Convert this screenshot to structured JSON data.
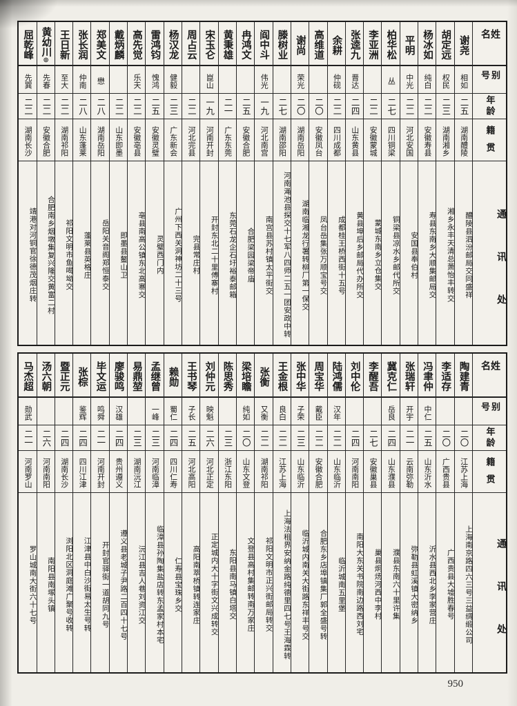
{
  "page_number": "950",
  "column_headers": {
    "name": "姓名",
    "alias": "别号",
    "age": "年龄",
    "native_place": "籍贯",
    "address": "通讯处"
  },
  "tables": [
    {
      "people": [
        {
          "name": "谢尧",
          "alias": "相如",
          "age": "二五",
          "native": "湖南醴陵",
          "address": "醴陵县泗汾邮局交同盛祥"
        },
        {
          "name": "胡定远",
          "alias": "权民",
          "age": "二三",
          "native": "湖南湘乡",
          "address": "湘乡永丰天清总萧怡丰转交"
        },
        {
          "name": "杨冰如",
          "alias": "纯白",
          "age": "二二",
          "native": "安徽寿县",
          "address": "寿县东南乡大顺集邮局交"
        },
        {
          "name": "平明",
          "alias": "中光",
          "age": "二二",
          "native": "河北安国",
          "address": "安国县奉伯村"
        },
        {
          "name": "柏华松",
          "alias": "丛",
          "age": "二七",
          "native": "四川铜梁",
          "address": "铜梁县凉水乡邮代所交"
        },
        {
          "name": "李亚洲",
          "alias": "",
          "age": "二二",
          "native": "安徽蒙城",
          "address": "蒙城东南乡立仓集交"
        },
        {
          "name": "张逵九",
          "alias": "晋达",
          "age": "二四",
          "native": "山东黄县",
          "address": "黄县埠后乡邮局代办所交"
        },
        {
          "name": "余耕",
          "alias": "仲砚",
          "age": "二二",
          "native": "四川成都",
          "address": "成都桂王桥西街十五号"
        },
        {
          "name": "高维道",
          "alias": "",
          "age": "二〇",
          "native": "安徽凤台",
          "address": "凤台岳集张万顺宝号交"
        },
        {
          "name": "谢尚",
          "alias": "荣光",
          "age": "二〇",
          "native": "湖南岳阳",
          "address": "湖南临湘龙行署转柳厂第一保交"
        },
        {
          "name": "滕树业",
          "alias": "",
          "age": "二七",
          "native": "湖南邵阳",
          "address": "河南渑池县探交十七军八四师二五一团安政中转"
        },
        {
          "name": "阎中斗",
          "alias": "伟光",
          "age": "一九",
          "native": "河北南宫",
          "address": "南宫县苏村镇太平街交"
        },
        {
          "name": "冉鸿文",
          "alias": "",
          "age": "二五",
          "native": "安徽合肥",
          "address": "合肥梁园梁帝庙"
        },
        {
          "name": "黄秉雄",
          "alias": "",
          "age": "二一",
          "native": "广东东莞",
          "address": "东莞石龙企石圩裕泰邮箱"
        },
        {
          "name": "宋玉仑",
          "alias": "崑山",
          "age": "一九",
          "native": "河南开封",
          "address": "开封东北二十里傅寨村"
        },
        {
          "name": "周占云",
          "alias": "",
          "age": "二二",
          "native": "河北完县",
          "address": "完县常庄村"
        },
        {
          "name": "杨汉龙",
          "alias": "健毅",
          "age": "二三",
          "native": "广东新会",
          "address": "广州下西关洞神坊二十三号"
        },
        {
          "name": "雷鸿钧",
          "alias": "愧鸿",
          "age": "二五",
          "native": "安徽灵璧",
          "address": "灵璧西门内"
        },
        {
          "name": "高先觉",
          "alias": "乐天",
          "age": "二二",
          "native": "安徽亳县",
          "address": "亳县南高公镇东北高寨交"
        },
        {
          "name": "戴炳麟",
          "alias": "",
          "age": "二二",
          "native": "山东即墨",
          "address": "即墨县鳌山卫"
        },
        {
          "name": "郑美文",
          "alias": "懋",
          "age": "二八",
          "native": "湖南岳阳",
          "address": "岳阳关音阁郑恒泰交"
        },
        {
          "name": "张长润",
          "alias": "仲南",
          "age": "二八",
          "native": "山东蓬莱",
          "address": "蓬莱县英格庄"
        },
        {
          "name": "王日新",
          "alias": "至大",
          "age": "二二",
          "native": "湖南祁阳",
          "address": "祁阳文明市鱼喝坳交"
        },
        {
          "name": "黄幼川",
          "name_mark": "◎",
          "alias": "先春",
          "age": "二二",
          "native": "安徽合肥",
          "address": "合肥南乡烟墩集复兴隆交黄富二村"
        },
        {
          "name": "屈乾峰",
          "alias": "先巽",
          "age": "二二",
          "native": "湖南长沙",
          "address": "靖港对河铜官徐德茂烟庄转"
        }
      ]
    },
    {
      "people": [
        {
          "name": "陶建青",
          "alias": "",
          "age": "二〇",
          "native": "江苏上海",
          "address": "上海南京路四六三号三益绸缎公司"
        },
        {
          "name": "李适存",
          "alias": "",
          "age": "二〇",
          "native": "广西贵县",
          "address": "广西贵县大墟胜春号"
        },
        {
          "name": "冯聿仲",
          "alias": "中仁",
          "age": "二五",
          "native": "山东沂水",
          "address": "沂水县西北乡李家营庄"
        },
        {
          "name": "张瑞轩",
          "alias": "开宇",
          "age": "二一",
          "native": "云南弥勒",
          "address": "弥勒县虹溪镇大密纳乡"
        },
        {
          "name": "冀克仁",
          "alias": "岳良",
          "age": "二四",
          "native": "山东濮县",
          "address": "濮县东南六十里许集"
        },
        {
          "name": "李醒吾",
          "alias": "",
          "age": "二七",
          "native": "安徽巢县",
          "address": "巢县炯炀河西中李村"
        },
        {
          "name": "刘中伦",
          "alias": "",
          "age": "二四",
          "native": "河南南阳",
          "address": "南阳大东关书院南边路西刘宅"
        },
        {
          "name": "陆鸿儒",
          "alias": "汉年",
          "age": "二二",
          "native": "山东临沂",
          "address": "临沂城南五里堡"
        },
        {
          "name": "周宝华",
          "alias": "戴臣",
          "age": "二二",
          "native": "安徽合肥",
          "address": "合肥东乡店埠镇集厂郭全盛号转"
        },
        {
          "name": "张中华",
          "alias": "子荣",
          "age": "二三",
          "native": "山东临沂",
          "address": "临沂城内南关大街路东祥丰号交"
        },
        {
          "name": "王金根",
          "alias": "良白",
          "age": "二二",
          "native": "江苏上海",
          "address": "上海法租界安纳金路纯德里四七号王海霖转"
        },
        {
          "name": "张衡",
          "alias": "又衡",
          "age": "二二",
          "native": "湖南祁阳",
          "address": "祁阳文明市正兴街邮局转交"
        },
        {
          "name": "梁培瞻",
          "alias": "纯如",
          "age": "二〇",
          "native": "山东文登",
          "address": "文登县高村集邮转南万家庄"
        },
        {
          "name": "陈思秀",
          "alias": "",
          "age": "二三",
          "native": "浙江东阳",
          "address": "东阳县南马镇白塔交"
        },
        {
          "name": "刘仲元",
          "alias": "映魁",
          "age": "二六",
          "native": "河北正定",
          "address": "正定城内大十字街文兴成转交"
        },
        {
          "name": "王书琴",
          "alias": "子长",
          "age": "二五",
          "native": "河北高阳",
          "address": "高阳南萃桥镇转连家庄"
        },
        {
          "name": "赖勋",
          "alias": "蜀仁",
          "age": "二四",
          "native": "四川仁寿",
          "address": "仁寿县宝珠乡交"
        },
        {
          "name": "孟继曾",
          "alias": "一峰",
          "age": "二三",
          "native": "河南临漳",
          "address": "临漳县孙陶集盐店转东孟家村本宅"
        },
        {
          "name": "易鼎堃",
          "alias": "",
          "age": "二三",
          "native": "湖南沅江",
          "address": "沅江县吉人巷刘资江交"
        },
        {
          "name": "廖骏鸣",
          "alias": "汉雄",
          "age": "二四",
          "native": "贵州遵义",
          "address": "遵义县老城子尹路二百四十七号"
        },
        {
          "name": "毕文运",
          "alias": "鸣舜",
          "age": "二一",
          "native": "河南开封",
          "address": "开封官驿街一道胡同九号"
        },
        {
          "name": "张棕",
          "alias": "鉴辉",
          "age": "二四",
          "native": "四川江津",
          "address": "江津县中白沙街易太生号转"
        },
        {
          "name": "暨正元",
          "alias": "",
          "age": "二四",
          "native": "湖南长沙",
          "address": "浏阳北区洞庭滩广聚号收转"
        },
        {
          "name": "汤六朝",
          "alias": "",
          "age": "二六",
          "native": "河南南阳",
          "address": "南阳县南塚头镇"
        },
        {
          "name": "马杰超",
          "alias": "勋武",
          "age": "二一",
          "native": "河南罗山",
          "address": "罗山城南大街六十七号"
        }
      ]
    }
  ]
}
